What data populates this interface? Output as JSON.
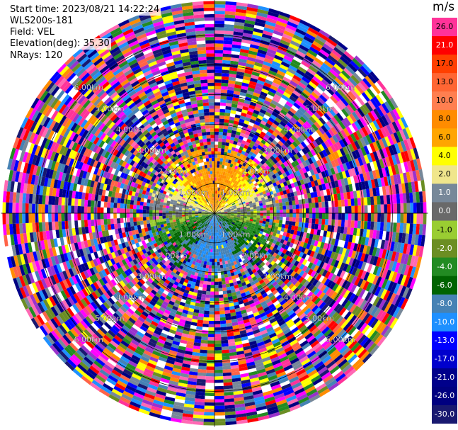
{
  "header": {
    "start_time": "Start time: 2023/08/21 14:22:24",
    "instrument": "WLS200s-181",
    "field": "Field: VEL",
    "elevation": "Elevation(deg): 35.30",
    "nrays": "NRays: 120"
  },
  "colorbar": {
    "unit": "m/s",
    "levels": [
      {
        "label": "26.0",
        "color": "#ff3399"
      },
      {
        "label": "21.0",
        "color": "#ff0000"
      },
      {
        "label": "17.0",
        "color": "#ff4000"
      },
      {
        "label": "13.0",
        "color": "#ff6633"
      },
      {
        "label": "10.0",
        "color": "#ff7f50"
      },
      {
        "label": "8.0",
        "color": "#ff8c00"
      },
      {
        "label": "6.0",
        "color": "#ffa500"
      },
      {
        "label": "4.0",
        "color": "#ffff00"
      },
      {
        "label": "2.0",
        "color": "#f0e68c"
      },
      {
        "label": "1.0",
        "color": "#778899"
      },
      {
        "label": "0.0",
        "color": "#696969"
      },
      {
        "label": "-1.0",
        "color": "#9acd32"
      },
      {
        "label": "-2.0",
        "color": "#6b8e23"
      },
      {
        "label": "-4.0",
        "color": "#228b22"
      },
      {
        "label": "-6.0",
        "color": "#006400"
      },
      {
        "label": "-8.0",
        "color": "#4682b4"
      },
      {
        "label": "-10.0",
        "color": "#1e90ff"
      },
      {
        "label": "-13.0",
        "color": "#0000ff"
      },
      {
        "label": "-17.0",
        "color": "#0000cd"
      },
      {
        "label": "-21.0",
        "color": "#00008b"
      },
      {
        "label": "-26.0",
        "color": "#000080"
      },
      {
        "label": "-30.0",
        "color": "#191970"
      }
    ]
  },
  "chart_data": {
    "type": "heatmap",
    "plot": "PPI radial velocity",
    "rays": 120,
    "range_rings_km": [
      1.0,
      2.0,
      3.0,
      4.0,
      5.0,
      6.0
    ],
    "ring_labels": [
      "1.00km",
      "2.00km",
      "3.00km",
      "4.00km",
      "5.00km",
      "6.00km"
    ],
    "max_range_km": 7.2,
    "valid_range_km": 2.2,
    "field": "VEL",
    "units": "m/s",
    "color_range": [
      -30,
      30
    ],
    "pattern": "toward (negative) to the south, away (positive) to the north; noisy beyond ~2 km"
  }
}
